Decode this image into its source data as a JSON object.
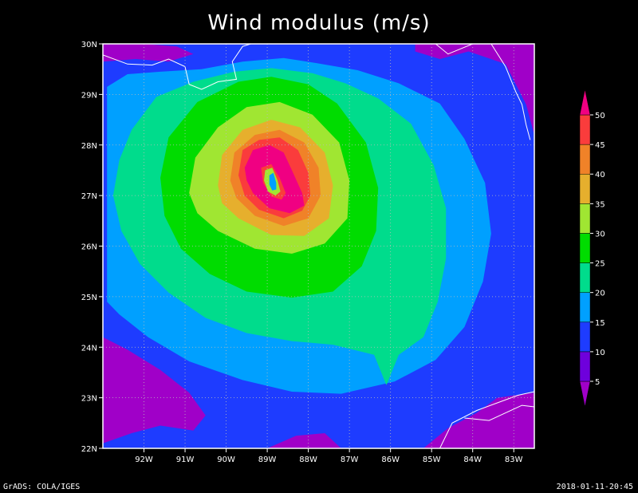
{
  "title": "Wind modulus (m/s)",
  "footer_left": "GrADS: COLA/IGES",
  "footer_right": "2018-01-11-20:45",
  "colors": {
    "background": "#000000",
    "grid": "#bbbbbb",
    "coast": "#ffffff",
    "levels": [
      "#a000c8",
      "#6e00dc",
      "#1e3cff",
      "#00a0ff",
      "#00dc8c",
      "#00dc00",
      "#a0e632",
      "#e6af2d",
      "#f08228",
      "#fa3c3c",
      "#f00082"
    ]
  },
  "chart_data": {
    "type": "heatmap",
    "title": "Wind modulus (m/s)",
    "xlabel": "",
    "ylabel": "",
    "xlim": [
      -93,
      -82.5
    ],
    "ylim": [
      22,
      30
    ],
    "x_ticks": [
      -92,
      -91,
      -90,
      -89,
      -88,
      -87,
      -86,
      -85,
      -84,
      -83
    ],
    "x_tick_labels": [
      "92W",
      "91W",
      "90W",
      "89W",
      "88W",
      "87W",
      "86W",
      "85W",
      "84W",
      "83W"
    ],
    "y_ticks": [
      22,
      23,
      24,
      25,
      26,
      27,
      28,
      29,
      30
    ],
    "y_tick_labels": [
      "22N",
      "23N",
      "24N",
      "25N",
      "26N",
      "27N",
      "28N",
      "29N",
      "30N"
    ],
    "grid": true,
    "colorbar": {
      "placement": "right",
      "levels": [
        5,
        10,
        15,
        20,
        25,
        30,
        35,
        40,
        45,
        50
      ],
      "labels": [
        "5",
        "10",
        "15",
        "20",
        "25",
        "30",
        "35",
        "40",
        "45",
        "50"
      ]
    },
    "storm_center": {
      "lon": -88.8,
      "lat": 27.2
    },
    "contours": [
      {
        "level": 15,
        "points": [
          [
            -92.9,
            29.15
          ],
          [
            -92.4,
            29.4
          ],
          [
            -91.6,
            29.45
          ],
          [
            -90.6,
            29.5
          ],
          [
            -89.6,
            29.65
          ],
          [
            -88.6,
            29.72
          ],
          [
            -87.8,
            29.62
          ],
          [
            -86.8,
            29.48
          ],
          [
            -85.8,
            29.22
          ],
          [
            -84.8,
            28.82
          ],
          [
            -84.2,
            28.12
          ],
          [
            -83.7,
            27.25
          ],
          [
            -83.55,
            26.25
          ],
          [
            -83.75,
            25.3
          ],
          [
            -84.2,
            24.4
          ],
          [
            -84.9,
            23.75
          ],
          [
            -85.9,
            23.32
          ],
          [
            -87.2,
            23.08
          ],
          [
            -88.4,
            23.12
          ],
          [
            -89.6,
            23.35
          ],
          [
            -90.9,
            23.72
          ],
          [
            -91.9,
            24.2
          ],
          [
            -92.6,
            24.65
          ],
          [
            -92.9,
            24.9
          ]
        ]
      },
      {
        "level": 20,
        "points": [
          [
            -92.3,
            28.3
          ],
          [
            -91.7,
            28.95
          ],
          [
            -90.8,
            29.25
          ],
          [
            -89.8,
            29.45
          ],
          [
            -88.9,
            29.52
          ],
          [
            -87.9,
            29.42
          ],
          [
            -87.1,
            29.22
          ],
          [
            -86.3,
            28.92
          ],
          [
            -85.5,
            28.42
          ],
          [
            -84.95,
            27.6
          ],
          [
            -84.65,
            26.75
          ],
          [
            -84.65,
            25.75
          ],
          [
            -84.85,
            24.9
          ],
          [
            -85.2,
            24.2
          ],
          [
            -85.8,
            23.85
          ],
          [
            -86.1,
            23.25
          ],
          [
            -86.4,
            23.85
          ],
          [
            -87.4,
            24.05
          ],
          [
            -88.4,
            24.12
          ],
          [
            -89.5,
            24.28
          ],
          [
            -90.5,
            24.58
          ],
          [
            -91.4,
            25.08
          ],
          [
            -92.1,
            25.65
          ],
          [
            -92.55,
            26.3
          ],
          [
            -92.75,
            27.0
          ],
          [
            -92.6,
            27.7
          ]
        ]
      },
      {
        "level": 25,
        "points": [
          [
            -91.6,
            27.35
          ],
          [
            -91.4,
            28.15
          ],
          [
            -90.7,
            28.85
          ],
          [
            -89.7,
            29.25
          ],
          [
            -88.9,
            29.35
          ],
          [
            -88.0,
            29.2
          ],
          [
            -87.3,
            28.82
          ],
          [
            -86.6,
            28.05
          ],
          [
            -86.3,
            27.15
          ],
          [
            -86.35,
            26.3
          ],
          [
            -86.7,
            25.6
          ],
          [
            -87.4,
            25.1
          ],
          [
            -88.4,
            24.98
          ],
          [
            -89.5,
            25.1
          ],
          [
            -90.4,
            25.45
          ],
          [
            -91.1,
            25.95
          ],
          [
            -91.5,
            26.6
          ]
        ]
      },
      {
        "level": 30,
        "points": [
          [
            -90.9,
            27.05
          ],
          [
            -90.75,
            27.75
          ],
          [
            -90.2,
            28.35
          ],
          [
            -89.5,
            28.75
          ],
          [
            -88.7,
            28.85
          ],
          [
            -87.9,
            28.6
          ],
          [
            -87.25,
            28.05
          ],
          [
            -87.0,
            27.3
          ],
          [
            -87.05,
            26.55
          ],
          [
            -87.6,
            26.05
          ],
          [
            -88.4,
            25.85
          ],
          [
            -89.3,
            25.95
          ],
          [
            -90.2,
            26.3
          ],
          [
            -90.7,
            26.65
          ]
        ]
      },
      {
        "level": 35,
        "points": [
          [
            -90.2,
            27.2
          ],
          [
            -90.1,
            27.8
          ],
          [
            -89.6,
            28.3
          ],
          [
            -88.9,
            28.5
          ],
          [
            -88.2,
            28.35
          ],
          [
            -87.6,
            27.85
          ],
          [
            -87.4,
            27.2
          ],
          [
            -87.5,
            26.55
          ],
          [
            -88.1,
            26.2
          ],
          [
            -88.9,
            26.22
          ],
          [
            -89.7,
            26.55
          ],
          [
            -90.1,
            26.85
          ]
        ]
      },
      {
        "level": 40,
        "points": [
          [
            -89.9,
            27.3
          ],
          [
            -89.8,
            27.85
          ],
          [
            -89.3,
            28.2
          ],
          [
            -88.7,
            28.3
          ],
          [
            -88.1,
            28.05
          ],
          [
            -87.75,
            27.55
          ],
          [
            -87.7,
            27.0
          ],
          [
            -88.0,
            26.55
          ],
          [
            -88.6,
            26.4
          ],
          [
            -89.3,
            26.6
          ],
          [
            -89.75,
            26.95
          ]
        ]
      },
      {
        "level": 45,
        "points": [
          [
            -89.7,
            27.4
          ],
          [
            -89.6,
            27.9
          ],
          [
            -89.2,
            28.1
          ],
          [
            -88.7,
            28.15
          ],
          [
            -88.25,
            27.9
          ],
          [
            -88.0,
            27.45
          ],
          [
            -87.95,
            27.0
          ],
          [
            -88.15,
            26.7
          ],
          [
            -88.6,
            26.55
          ],
          [
            -89.2,
            26.72
          ],
          [
            -89.55,
            27.0
          ]
        ]
      },
      {
        "level": 50,
        "points": [
          [
            -89.55,
            27.55
          ],
          [
            -89.35,
            27.9
          ],
          [
            -88.95,
            28.0
          ],
          [
            -88.6,
            27.85
          ],
          [
            -88.4,
            27.5
          ],
          [
            -88.15,
            27.05
          ],
          [
            -88.1,
            26.8
          ],
          [
            -88.45,
            26.65
          ],
          [
            -88.95,
            26.75
          ],
          [
            -89.35,
            27.05
          ],
          [
            -89.5,
            27.3
          ]
        ]
      },
      {
        "level": 45,
        "points": [
          [
            -89.15,
            27.55
          ],
          [
            -88.9,
            27.62
          ],
          [
            -88.7,
            27.35
          ],
          [
            -88.55,
            27.05
          ],
          [
            -88.65,
            26.92
          ],
          [
            -88.9,
            26.98
          ],
          [
            -89.1,
            27.25
          ]
        ]
      },
      {
        "level": 30,
        "points": [
          [
            -89.05,
            27.5
          ],
          [
            -88.88,
            27.55
          ],
          [
            -88.75,
            27.3
          ],
          [
            -88.68,
            27.08
          ],
          [
            -88.8,
            27.0
          ],
          [
            -88.98,
            27.08
          ],
          [
            -89.08,
            27.3
          ]
        ]
      },
      {
        "level": 15,
        "points": [
          [
            -88.95,
            27.4
          ],
          [
            -88.85,
            27.45
          ],
          [
            -88.78,
            27.25
          ],
          [
            -88.78,
            27.12
          ],
          [
            -88.88,
            27.1
          ],
          [
            -88.95,
            27.22
          ]
        ]
      }
    ],
    "low_regions": [
      {
        "level": 5,
        "points": [
          [
            -93,
            30
          ],
          [
            -92,
            30
          ],
          [
            -91.2,
            29.95
          ],
          [
            -90.8,
            29.8
          ],
          [
            -91.4,
            29.65
          ],
          [
            -92.2,
            29.7
          ],
          [
            -93,
            29.65
          ]
        ]
      },
      {
        "level": 5,
        "points": [
          [
            -85.4,
            30
          ],
          [
            -82.5,
            30
          ],
          [
            -82.5,
            28.2
          ],
          [
            -82.7,
            28.8
          ],
          [
            -83.2,
            29.6
          ],
          [
            -84.1,
            29.85
          ],
          [
            -84.8,
            29.7
          ],
          [
            -85.4,
            29.85
          ]
        ]
      },
      {
        "level": 5,
        "points": [
          [
            -93,
            24.2
          ],
          [
            -92.4,
            23.95
          ],
          [
            -91.6,
            23.55
          ],
          [
            -90.9,
            23.1
          ],
          [
            -90.5,
            22.65
          ],
          [
            -90.8,
            22.35
          ],
          [
            -91.6,
            22.45
          ],
          [
            -92.3,
            22.3
          ],
          [
            -93,
            22.1
          ]
        ]
      },
      {
        "level": 5,
        "points": [
          [
            -89.0,
            22.0
          ],
          [
            -88.3,
            22.25
          ],
          [
            -87.6,
            22.3
          ],
          [
            -87.2,
            22.0
          ]
        ]
      },
      {
        "level": 5,
        "points": [
          [
            -85.2,
            22.0
          ],
          [
            -84.6,
            22.4
          ],
          [
            -83.9,
            22.7
          ],
          [
            -83.4,
            23.0
          ],
          [
            -82.5,
            23.1
          ],
          [
            -82.5,
            22.0
          ]
        ]
      }
    ],
    "coastlines": [
      [
        [
          -93,
          29.78
        ],
        [
          -92.4,
          29.6
        ],
        [
          -91.8,
          29.58
        ],
        [
          -91.4,
          29.7
        ],
        [
          -91.0,
          29.55
        ],
        [
          -90.9,
          29.2
        ],
        [
          -90.6,
          29.1
        ],
        [
          -90.2,
          29.25
        ],
        [
          -89.75,
          29.3
        ],
        [
          -89.85,
          29.65
        ],
        [
          -89.6,
          29.95
        ],
        [
          -89.4,
          30.0
        ]
      ],
      [
        [
          -84.9,
          30.0
        ],
        [
          -84.6,
          29.8
        ],
        [
          -84.3,
          29.9
        ],
        [
          -84.0,
          30.0
        ]
      ],
      [
        [
          -83.55,
          30.0
        ],
        [
          -83.2,
          29.55
        ],
        [
          -82.95,
          29.05
        ],
        [
          -82.8,
          28.8
        ],
        [
          -82.7,
          28.4
        ],
        [
          -82.6,
          28.1
        ]
      ],
      [
        [
          -84.8,
          22.0
        ],
        [
          -84.5,
          22.5
        ],
        [
          -83.9,
          22.75
        ],
        [
          -83.4,
          22.9
        ],
        [
          -82.9,
          23.05
        ],
        [
          -82.5,
          23.12
        ]
      ],
      [
        [
          -84.2,
          22.6
        ],
        [
          -83.6,
          22.55
        ],
        [
          -83.2,
          22.7
        ],
        [
          -82.8,
          22.85
        ],
        [
          -82.5,
          22.82
        ]
      ]
    ]
  }
}
